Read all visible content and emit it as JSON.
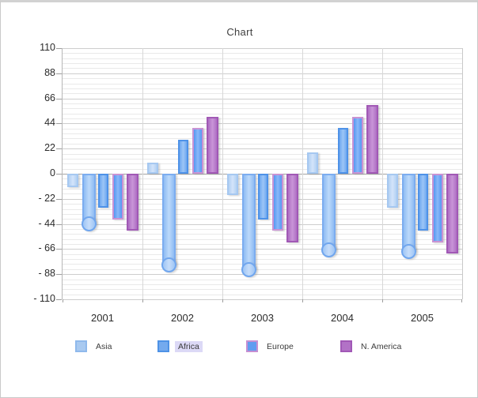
{
  "window": {
    "background": "#ffffff",
    "border_color": "#c9c9c9"
  },
  "chart_data": {
    "type": "bar",
    "title": "Chart",
    "categories": [
      "2001",
      "2002",
      "2003",
      "2004",
      "2005"
    ],
    "y_axis": {
      "min": -110,
      "max": 110,
      "major_step": 22,
      "minor_per_major": 5,
      "tick_labels": [
        "110",
        "88",
        "66",
        "44",
        "22",
        "0",
        "- 22",
        "- 44",
        "- 66",
        "- 88",
        "- 110"
      ]
    },
    "grid": {
      "minor_color": "#e9e9e9",
      "major_color": "#cdcdcd",
      "zero_color": "#a6a6a6",
      "vertical_color": "#d8d8d8"
    },
    "series": [
      {
        "name": "Asia",
        "values": [
          -12,
          10,
          -19,
          19,
          -30
        ],
        "style": {
          "fill": "#b3d1f3",
          "fill_light": "#d3e4fa",
          "border": "#a6c8f1"
        }
      },
      {
        "name": "Africa",
        "selected": true,
        "round_cap": true,
        "values": [
          -44,
          -80,
          -84,
          -67,
          -68
        ],
        "style": {
          "fill": "#8fbcf3",
          "fill_light": "#bcd9fa",
          "border": "#7cadf0",
          "cap_fill": "#9ec5f5",
          "cap_border": "#70a6ee"
        }
      },
      {
        "name": null,
        "values": [
          -30,
          30,
          -40,
          40,
          -50
        ],
        "style": {
          "fill": "#6ea8f0",
          "fill_light": "#9cc5f6",
          "border": "#4e92e8"
        }
      },
      {
        "name": "Europe",
        "values": [
          -40,
          40,
          -50,
          50,
          -60
        ],
        "style": {
          "fill": "#5598f2",
          "fill_light": "#8ab8f8",
          "border": "#c993d4"
        }
      },
      {
        "name": "N. America",
        "values": [
          -50,
          50,
          -60,
          60,
          -70
        ],
        "style": {
          "fill": "#ae6ec3",
          "fill_light": "#c995d8",
          "border": "#a159b5"
        }
      }
    ],
    "legend": {
      "position": "bottom",
      "items": [
        {
          "label": "Asia",
          "fill": "#a8c9f0",
          "border": "#8fb9ec",
          "highlighted": false
        },
        {
          "label": "Africa",
          "fill": "#74aaee",
          "border": "#4e92e6",
          "highlighted": true
        },
        {
          "label": "Europe",
          "fill": "#609cf0",
          "border": "#c68fd2",
          "highlighted": false
        },
        {
          "label": "N. America",
          "fill": "#b272c6",
          "border": "#a158b6",
          "highlighted": false
        }
      ]
    }
  }
}
